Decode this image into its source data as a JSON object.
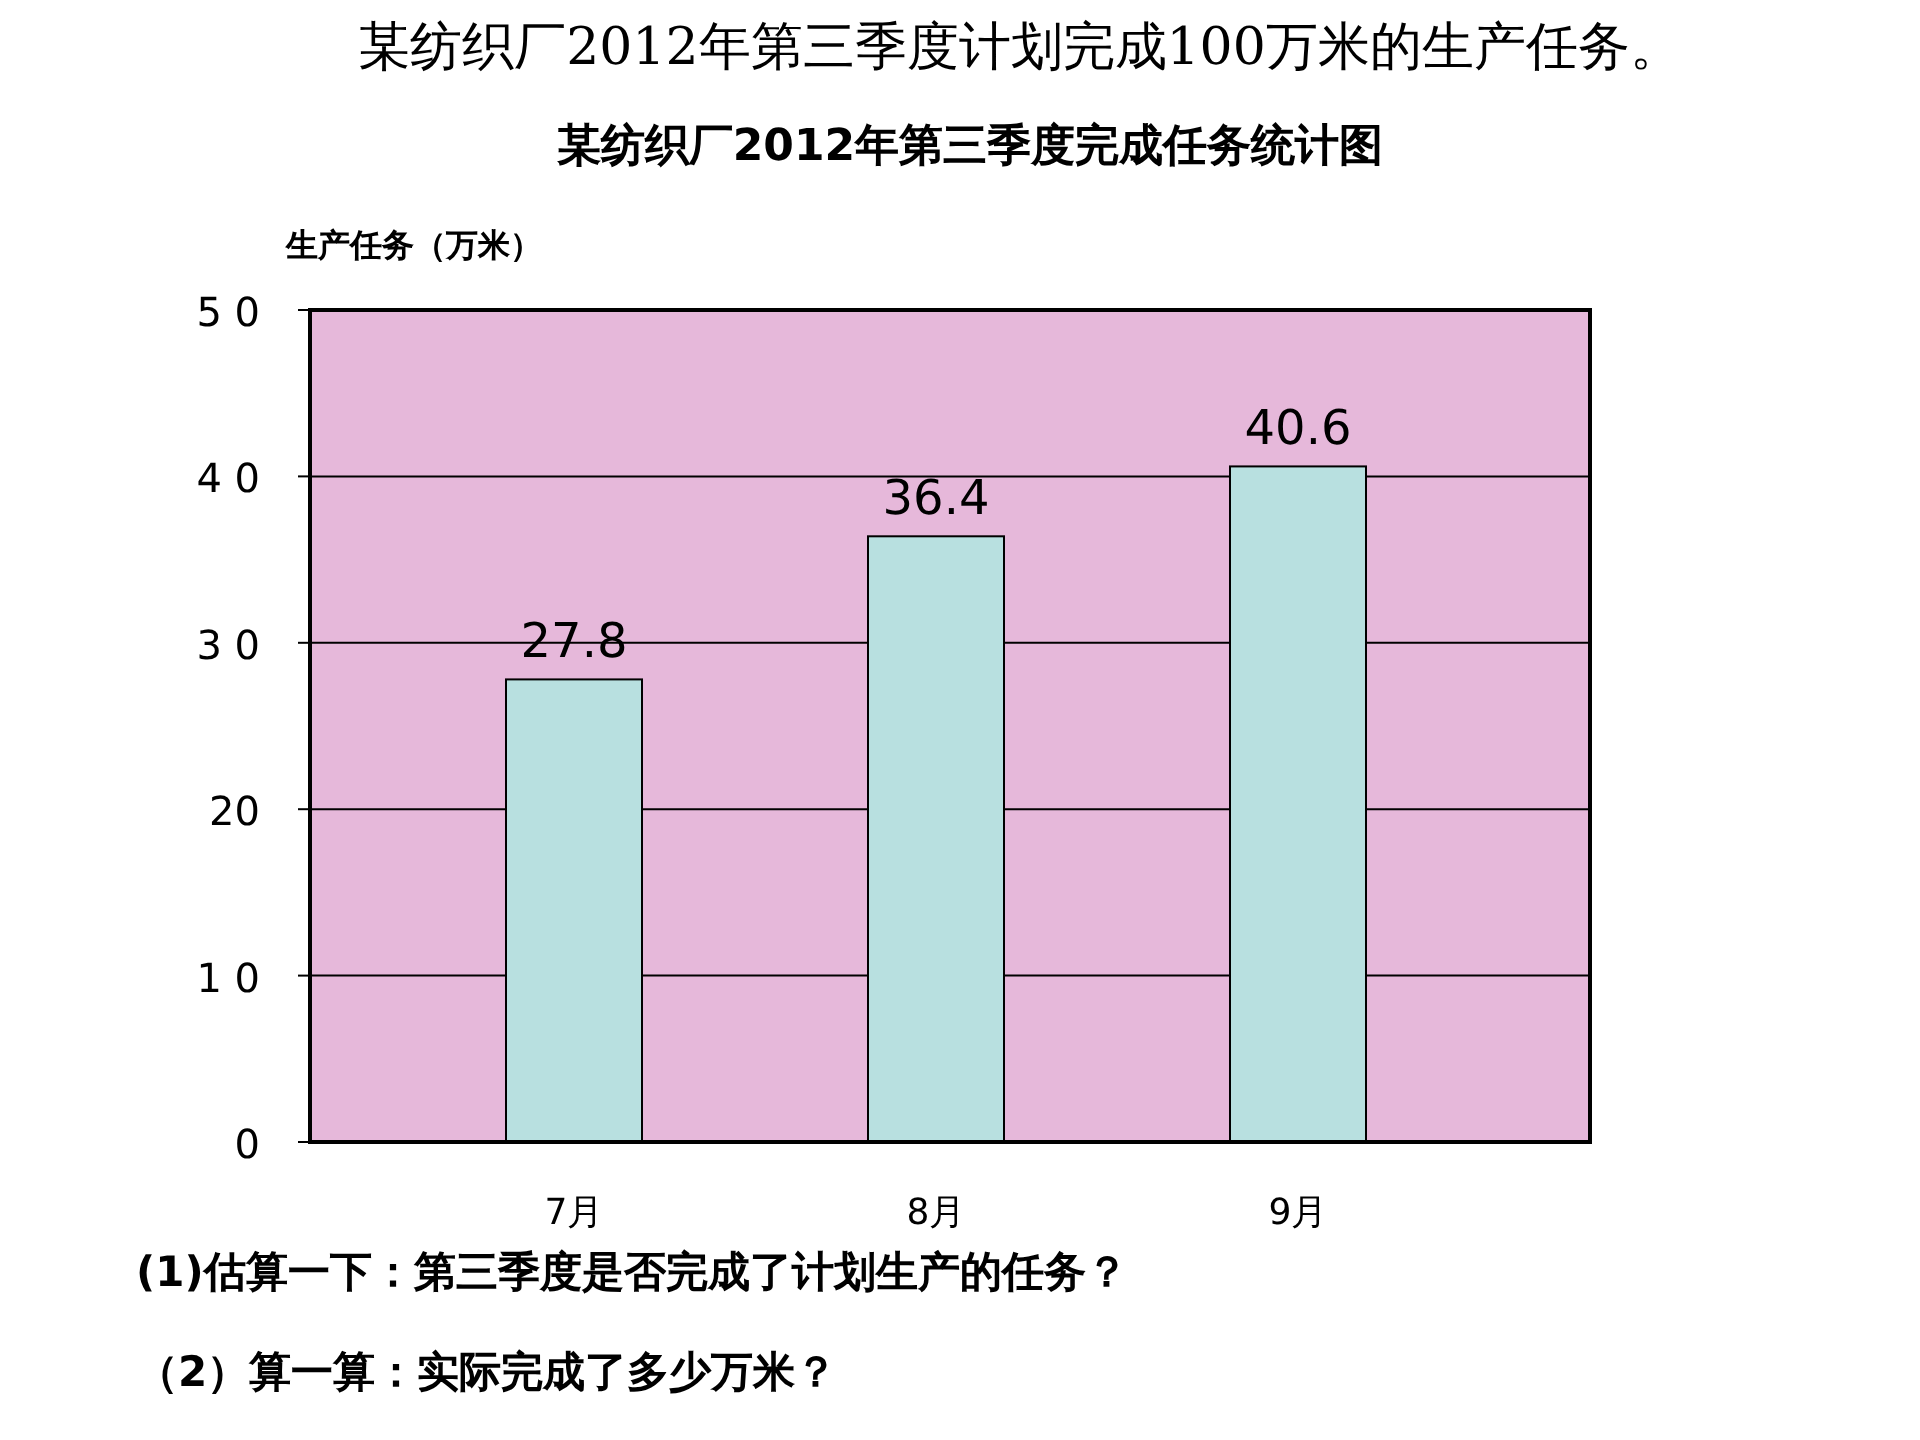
{
  "chart_data": {
    "type": "bar",
    "subtitle": "某纺织厂2012年第三季度计划完成100万米的生产任务。",
    "title": "某纺织厂2012年第三季度完成任务统计图",
    "ylabel": "生产任务（万米）",
    "categories": [
      "7月",
      "8月",
      "9月"
    ],
    "values": [
      27.8,
      36.4,
      40.6
    ],
    "color": "#b8e0e0",
    "ylim": [
      0,
      50
    ],
    "yticks": [
      0,
      {
        "value": 10,
        "label": "1 0"
      },
      20,
      {
        "value": 30,
        "label": "3 0"
      },
      {
        "value": 40,
        "label": "4 0"
      },
      {
        "value": 50,
        "label": "5 0"
      }
    ],
    "grid": "y",
    "data_labels": true,
    "annotations": [
      "(1)估算一下：第三季度是否完成了计划生产的任务？",
      "（2）算一算：实际完成了多少万米？"
    ]
  }
}
